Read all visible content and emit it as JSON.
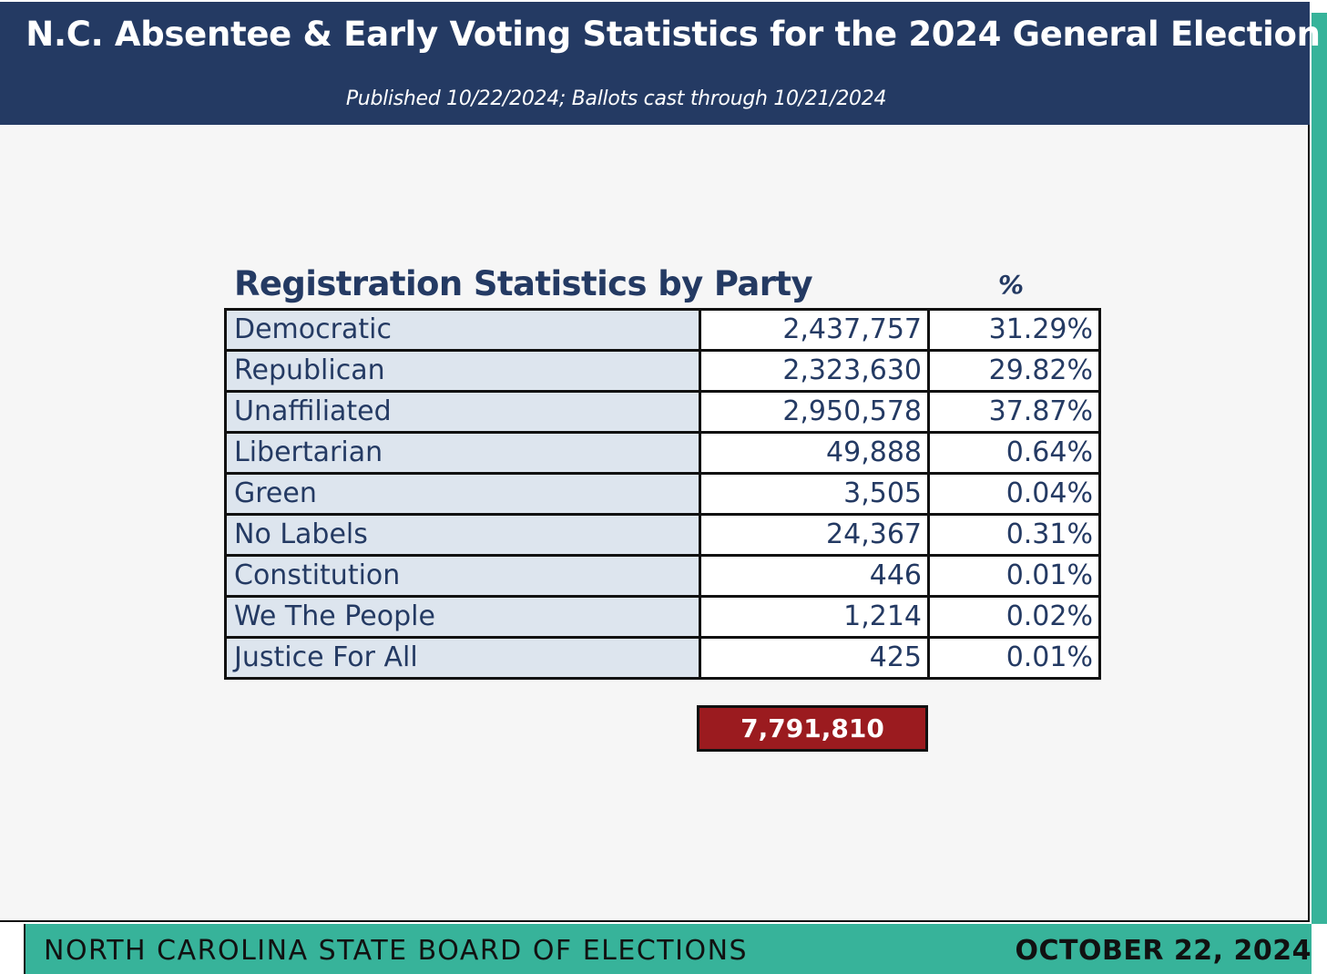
{
  "header": {
    "title": "N.C. Absentee & Early Voting Statistics for the 2024 General Election",
    "subtitle": "Published 10/22/2024; Ballots cast through 10/21/2024"
  },
  "table": {
    "heading": "Registration Statistics by Party",
    "pct_heading": "%",
    "rows": [
      {
        "party": "Democratic",
        "count": "2,437,757",
        "pct": "31.29%"
      },
      {
        "party": "Republican",
        "count": "2,323,630",
        "pct": "29.82%"
      },
      {
        "party": "Unaffiliated",
        "count": "2,950,578",
        "pct": "37.87%"
      },
      {
        "party": "Libertarian",
        "count": "49,888",
        "pct": "0.64%"
      },
      {
        "party": "Green",
        "count": "3,505",
        "pct": "0.04%"
      },
      {
        "party": "No Labels",
        "count": "24,367",
        "pct": "0.31%"
      },
      {
        "party": "Constitution",
        "count": "446",
        "pct": "0.01%"
      },
      {
        "party": "We The People",
        "count": "1,214",
        "pct": "0.02%"
      },
      {
        "party": "Justice For All",
        "count": "425",
        "pct": "0.01%"
      }
    ],
    "total": "7,791,810"
  },
  "footer": {
    "organization": "NORTH CAROLINA STATE BOARD OF ELECTIONS",
    "date": "OCTOBER 22, 2024"
  },
  "colors": {
    "header_bg": "#243a63",
    "accent_teal": "#37b39a",
    "total_bg": "#9b1b1f",
    "party_cell_bg": "#dde5ee"
  }
}
